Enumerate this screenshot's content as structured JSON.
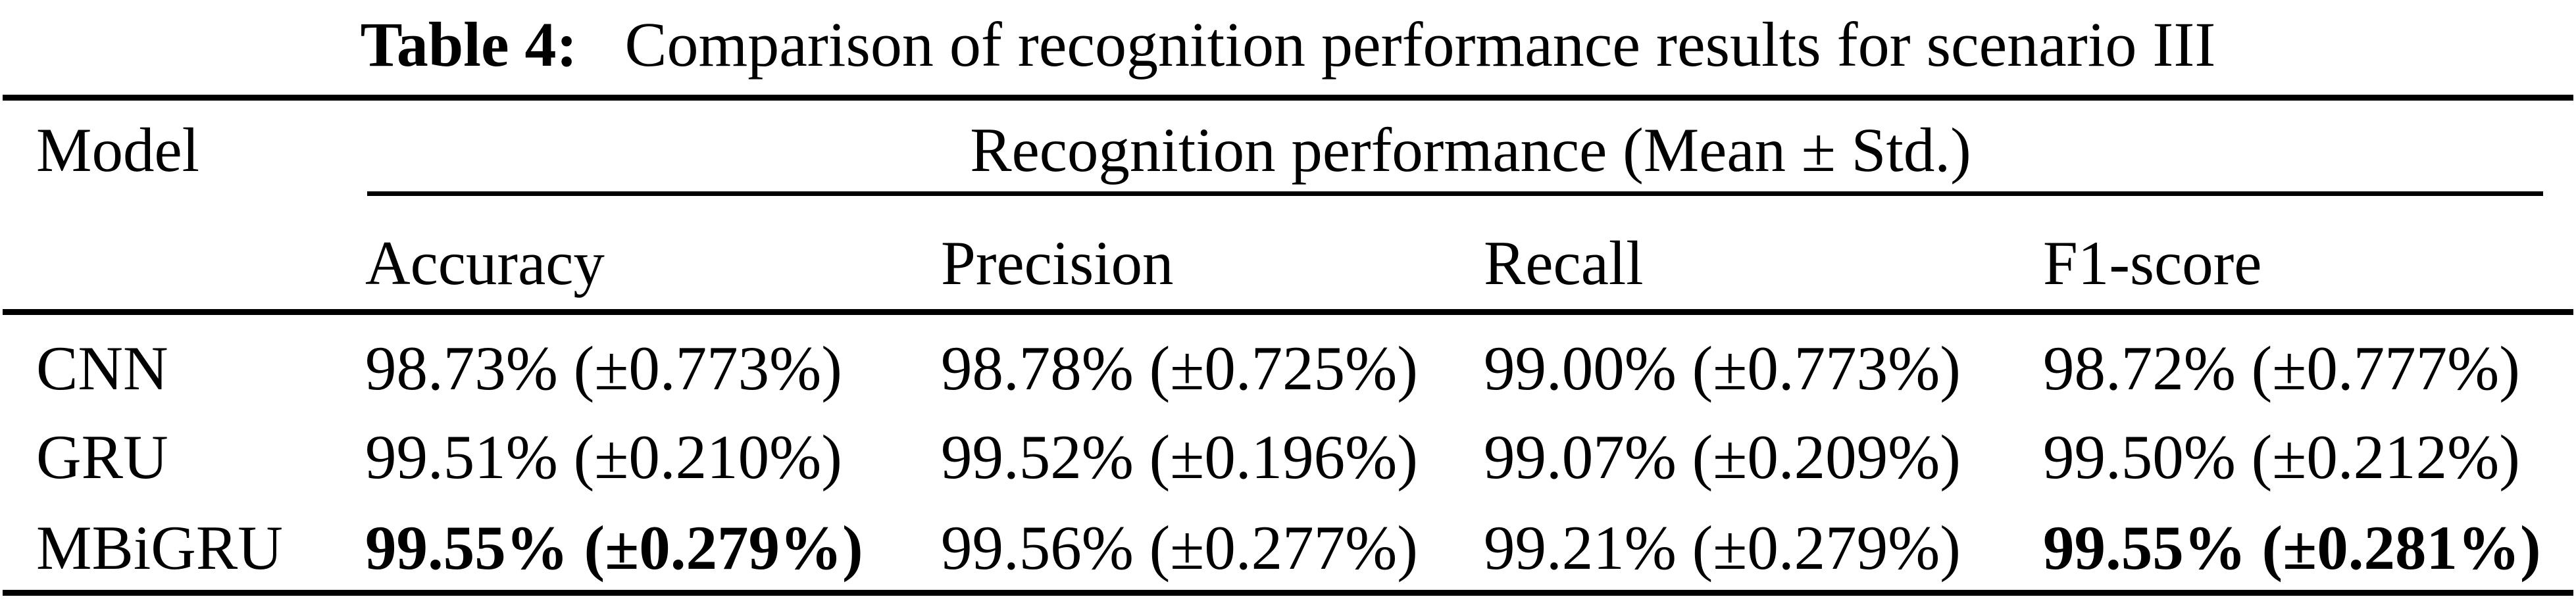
{
  "title": {
    "label": "Table 4:",
    "text": "Comparison of recognition performance results for scenario III"
  },
  "table": {
    "model_header": "Model",
    "group_header": "Recognition performance (Mean ± Std.)",
    "metric_headers": [
      "Accuracy",
      "Precision",
      "Recall",
      "F1-score"
    ],
    "rows": [
      {
        "model": "CNN",
        "accuracy": "98.73% (±0.773%)",
        "precision": "98.78% (±0.725%)",
        "recall": "99.00% (±0.773%)",
        "f1_score": "98.72% (±0.777%)",
        "bold_cells": []
      },
      {
        "model": "GRU",
        "accuracy": "99.51% (±0.210%)",
        "precision": "99.52% (±0.196%)",
        "recall": "99.07% (±0.209%)",
        "f1_score": "99.50% (±0.212%)",
        "bold_cells": []
      },
      {
        "model": "MBiGRU",
        "accuracy": "99.55% (±0.279%)",
        "precision": "99.56% (±0.277%)",
        "recall": "99.21% (±0.279%)",
        "f1_score": "99.55% (±0.281%)",
        "bold_cells": [
          "accuracy",
          "f1_score"
        ]
      }
    ]
  },
  "colors": {
    "background": "#ffffff",
    "text": "#000000",
    "rule": "#000000"
  }
}
